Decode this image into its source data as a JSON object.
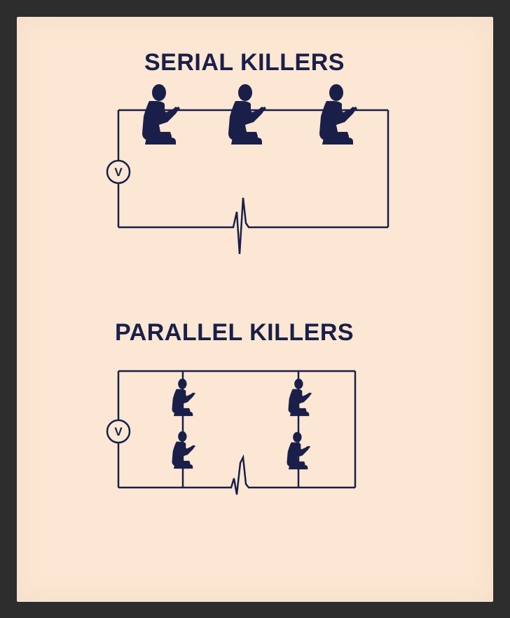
{
  "serial": {
    "title": "SERIAL KILLERS",
    "voltmeter_label": "V",
    "figure_count": 3
  },
  "parallel": {
    "title": "PARALLEL KILLERS",
    "voltmeter_label": "V",
    "figure_count": 4
  },
  "colors": {
    "background": "#fbe7d3",
    "ink": "#1a1f4a",
    "frame": "#2d2d2d"
  },
  "icons": [
    "seated-person-icon",
    "voltmeter-icon",
    "heartbeat-pulse-icon"
  ]
}
